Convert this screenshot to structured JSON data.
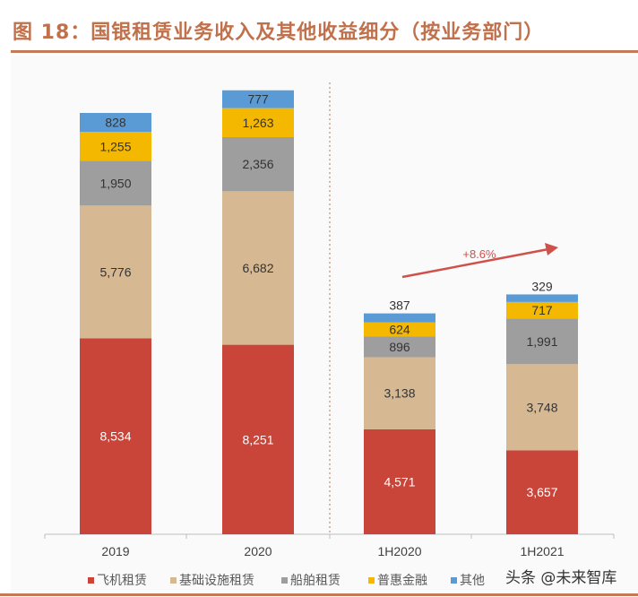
{
  "title": "图 18：国银租赁业务收入及其他收益细分（按业务部门）",
  "watermark": "头条 @未来智库",
  "colors": {
    "title": "#c0714c",
    "飞机租赁": "#c9453a",
    "基础设施租赁": "#d6b993",
    "船舶租赁": "#9e9e9e",
    "普惠金融": "#f5b800",
    "其他": "#5b9bd5",
    "annotation": "#d0504a"
  },
  "chart_data": {
    "type": "bar",
    "stacked": true,
    "categories": [
      "2019",
      "2020",
      "1H2020",
      "1H2021"
    ],
    "series": [
      {
        "name": "飞机租赁",
        "values": [
          8534,
          8251,
          4571,
          3657
        ]
      },
      {
        "name": "基础设施租赁",
        "values": [
          5776,
          6682,
          3138,
          3748
        ]
      },
      {
        "name": "船舶租赁",
        "values": [
          1950,
          2356,
          896,
          1991
        ]
      },
      {
        "name": "普惠金融",
        "values": [
          1255,
          1263,
          624,
          717
        ]
      },
      {
        "name": "其他",
        "values": [
          828,
          777,
          387,
          329
        ]
      }
    ],
    "data_labels": [
      [
        "8,534",
        "8,251",
        "4,571",
        "3,657"
      ],
      [
        "5,776",
        "6,682",
        "3,138",
        "3,748"
      ],
      [
        "1,950",
        "2,356",
        "896",
        "1,991"
      ],
      [
        "1,255",
        "1,263",
        "624",
        "717"
      ],
      [
        "828",
        "777",
        "387",
        "329"
      ]
    ],
    "annotation": {
      "text": "+8.6%",
      "from": "1H2020",
      "to": "1H2021"
    },
    "legend_position": "bottom",
    "grid": false,
    "y_axis_visible": false,
    "separator": "dotted line between 2020 and 1H2020"
  }
}
